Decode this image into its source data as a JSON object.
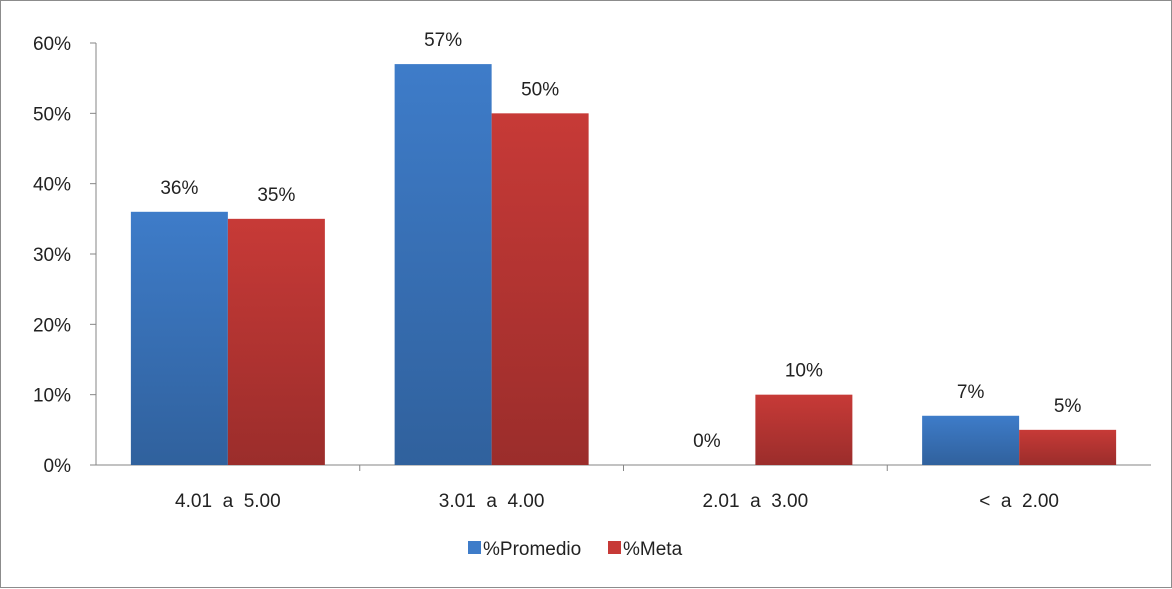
{
  "chart_data": {
    "type": "bar",
    "title": "",
    "xlabel": "",
    "ylabel": "",
    "categories": [
      "4.01  a  5.00",
      "3.01  a  4.00",
      "2.01  a  3.00",
      "<  a  2.00"
    ],
    "series": [
      {
        "name": "%Promedio",
        "color": "#3e7cc9",
        "values": [
          36,
          57,
          0,
          7
        ],
        "labels": [
          "36%",
          "57%",
          "0%",
          "7%"
        ]
      },
      {
        "name": "%Meta",
        "color": "#c73a37",
        "values": [
          35,
          50,
          10,
          5
        ],
        "labels": [
          "35%",
          "50%",
          "10%",
          "5%"
        ]
      }
    ],
    "ylim": [
      0,
      60
    ],
    "yticks": [
      0,
      10,
      20,
      30,
      40,
      50,
      60
    ],
    "ytick_labels": [
      "0%",
      "10%",
      "20%",
      "30%",
      "40%",
      "50%",
      "60%"
    ],
    "grid": false,
    "legend": "bottom"
  }
}
